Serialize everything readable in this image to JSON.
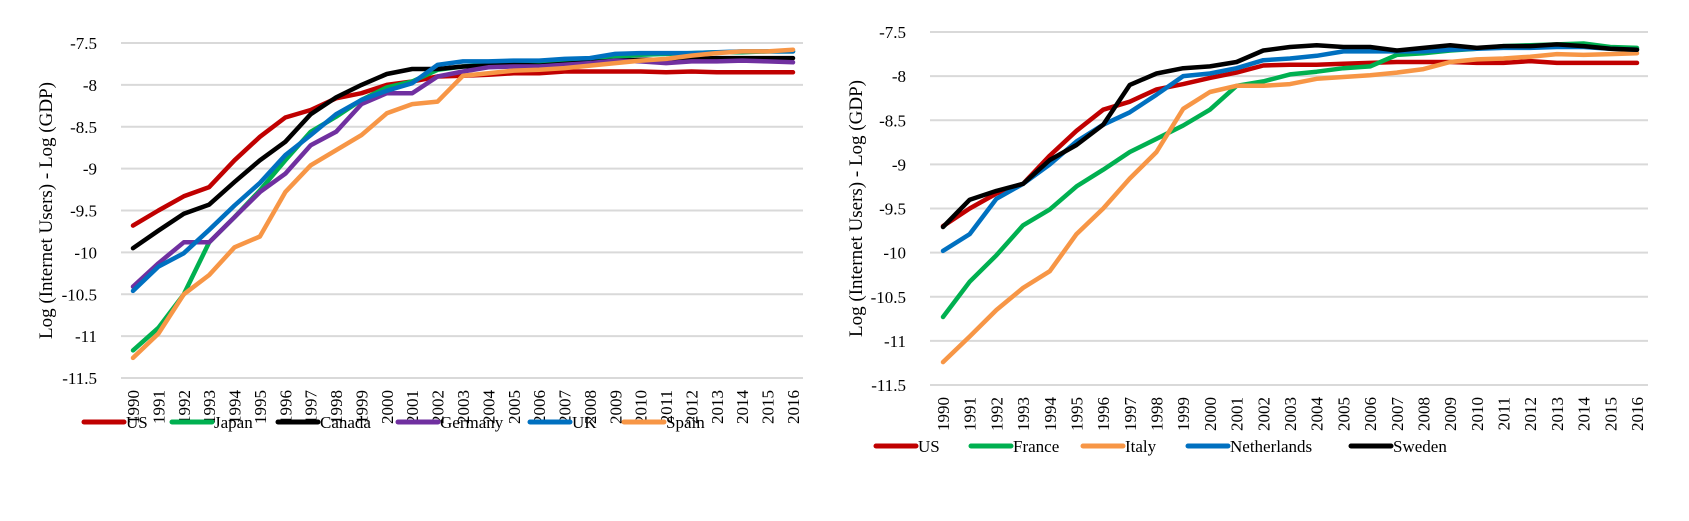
{
  "chart_data": [
    {
      "type": "line",
      "title": "",
      "xlabel": "",
      "ylabel": "Log (Internet Users) - Log (GDP)",
      "ylim": [
        -11.5,
        -7.5
      ],
      "yticks": [
        -7.5,
        -8,
        -8.5,
        -9,
        -9.5,
        -10,
        -10.5,
        -11,
        -11.5
      ],
      "ytick_labels": [
        "-7.5",
        "-8",
        "-8.5",
        "-9",
        "-9.5",
        "-10",
        "-10.5",
        "-11",
        "-11.5"
      ],
      "grid": true,
      "legend_position": "bottom",
      "x": [
        "1990",
        "1991",
        "1992",
        "1993",
        "1994",
        "1995",
        "1996",
        "1997",
        "1998",
        "1999",
        "2000",
        "2001",
        "2002",
        "2003",
        "2004",
        "2005",
        "2006",
        "2007",
        "2008",
        "2009",
        "2010",
        "2011",
        "2012",
        "2013",
        "2014",
        "2015",
        "2016"
      ],
      "series": [
        {
          "name": "US",
          "color": "#c00000",
          "values": [
            -9.68,
            -9.5,
            -9.33,
            -9.22,
            -8.9,
            -8.62,
            -8.39,
            -8.3,
            -8.16,
            -8.1,
            -8.0,
            -7.96,
            -7.9,
            -7.89,
            -7.88,
            -7.86,
            -7.86,
            -7.84,
            -7.84,
            -7.84,
            -7.84,
            -7.85,
            -7.84,
            -7.85,
            -7.85,
            -7.85,
            -7.85
          ]
        },
        {
          "name": "Japan",
          "color": "#00b050",
          "values": [
            -11.17,
            -10.9,
            -10.5,
            -9.88,
            -9.58,
            -9.26,
            -8.9,
            -8.56,
            -8.38,
            -8.18,
            -8.03,
            -7.96,
            -7.82,
            -7.78,
            -7.76,
            -7.74,
            -7.73,
            -7.71,
            -7.7,
            -7.67,
            -7.64,
            -7.63,
            -7.62,
            -7.61,
            -7.61,
            -7.6,
            -7.6
          ]
        },
        {
          "name": "Canada",
          "color": "#000000",
          "values": [
            -9.95,
            -9.74,
            -9.54,
            -9.43,
            -9.16,
            -8.9,
            -8.68,
            -8.35,
            -8.15,
            -8.0,
            -7.87,
            -7.81,
            -7.81,
            -7.78,
            -7.77,
            -7.76,
            -7.77,
            -7.75,
            -7.73,
            -7.71,
            -7.7,
            -7.7,
            -7.69,
            -7.68,
            -7.68,
            -7.68,
            -7.68
          ]
        },
        {
          "name": "Germany",
          "color": "#7030a0",
          "values": [
            -10.41,
            -10.13,
            -9.88,
            -9.88,
            -9.58,
            -9.28,
            -9.06,
            -8.72,
            -8.56,
            -8.23,
            -8.1,
            -8.1,
            -7.9,
            -7.84,
            -7.79,
            -7.78,
            -7.78,
            -7.76,
            -7.74,
            -7.71,
            -7.72,
            -7.74,
            -7.72,
            -7.72,
            -7.71,
            -7.72,
            -7.73
          ]
        },
        {
          "name": "UK",
          "color": "#0070c0",
          "values": [
            -10.46,
            -10.17,
            -10.01,
            -9.73,
            -9.44,
            -9.17,
            -8.84,
            -8.6,
            -8.35,
            -8.18,
            -8.07,
            -7.98,
            -7.76,
            -7.72,
            -7.72,
            -7.71,
            -7.71,
            -7.69,
            -7.68,
            -7.63,
            -7.62,
            -7.62,
            -7.62,
            -7.61,
            -7.6,
            -7.6,
            -7.6
          ]
        },
        {
          "name": "Spain",
          "color": "#f79646",
          "values": [
            -11.26,
            -10.97,
            -10.5,
            -10.27,
            -9.94,
            -9.81,
            -9.28,
            -8.96,
            -8.78,
            -8.6,
            -8.34,
            -8.23,
            -8.2,
            -7.89,
            -7.86,
            -7.83,
            -7.82,
            -7.8,
            -7.77,
            -7.74,
            -7.71,
            -7.69,
            -7.65,
            -7.62,
            -7.6,
            -7.6,
            -7.58
          ]
        }
      ]
    },
    {
      "type": "line",
      "title": "",
      "xlabel": "",
      "ylabel": "Log (Internet Users) - Log (GDP)",
      "ylim": [
        -11.5,
        -7.5
      ],
      "yticks": [
        -7.5,
        -8,
        -8.5,
        -9,
        -9.5,
        -10,
        -10.5,
        -11,
        -11.5
      ],
      "ytick_labels": [
        "-7.5",
        "-8",
        "-8.5",
        "-9",
        "-9.5",
        "-10",
        "-10.5",
        "-11",
        "-11.5"
      ],
      "grid": true,
      "legend_position": "bottom",
      "x": [
        "1990",
        "1991",
        "1992",
        "1993",
        "1994",
        "1995",
        "1996",
        "1997",
        "1998",
        "1999",
        "2000",
        "2001",
        "2002",
        "2003",
        "2004",
        "2005",
        "2006",
        "2007",
        "2008",
        "2009",
        "2010",
        "2011",
        "2012",
        "2013",
        "2014",
        "2015",
        "2016"
      ],
      "series": [
        {
          "name": "US",
          "color": "#c00000",
          "values": [
            -9.7,
            -9.5,
            -9.33,
            -9.22,
            -8.9,
            -8.62,
            -8.38,
            -8.29,
            -8.15,
            -8.09,
            -8.02,
            -7.96,
            -7.88,
            -7.87,
            -7.87,
            -7.86,
            -7.85,
            -7.84,
            -7.84,
            -7.84,
            -7.85,
            -7.85,
            -7.83,
            -7.85,
            -7.85,
            -7.85,
            -7.85
          ]
        },
        {
          "name": "France",
          "color": "#00b050",
          "values": [
            -10.73,
            -10.33,
            -10.03,
            -9.69,
            -9.51,
            -9.25,
            -9.06,
            -8.86,
            -8.71,
            -8.56,
            -8.38,
            -8.11,
            -8.06,
            -7.98,
            -7.95,
            -7.91,
            -7.89,
            -7.76,
            -7.74,
            -7.71,
            -7.69,
            -7.66,
            -7.65,
            -7.64,
            -7.63,
            -7.67,
            -7.68
          ]
        },
        {
          "name": "Italy",
          "color": "#f79646",
          "values": [
            -11.24,
            -10.95,
            -10.65,
            -10.4,
            -10.21,
            -9.79,
            -9.5,
            -9.16,
            -8.86,
            -8.37,
            -8.18,
            -8.11,
            -8.11,
            -8.09,
            -8.03,
            -8.01,
            -7.99,
            -7.96,
            -7.92,
            -7.84,
            -7.81,
            -7.8,
            -7.78,
            -7.75,
            -7.76,
            -7.75,
            -7.74
          ]
        },
        {
          "name": "Netherlands",
          "color": "#0070c0",
          "values": [
            -9.98,
            -9.79,
            -9.39,
            -9.22,
            -9.0,
            -8.74,
            -8.55,
            -8.41,
            -8.21,
            -8.0,
            -7.97,
            -7.91,
            -7.82,
            -7.8,
            -7.77,
            -7.72,
            -7.72,
            -7.72,
            -7.72,
            -7.7,
            -7.69,
            -7.68,
            -7.68,
            -7.67,
            -7.67,
            -7.69,
            -7.7
          ]
        },
        {
          "name": "Sweden",
          "color": "#000000",
          "values": [
            -9.71,
            -9.4,
            -9.3,
            -9.22,
            -8.95,
            -8.78,
            -8.55,
            -8.1,
            -7.97,
            -7.91,
            -7.89,
            -7.84,
            -7.71,
            -7.67,
            -7.65,
            -7.67,
            -7.67,
            -7.71,
            -7.68,
            -7.65,
            -7.68,
            -7.66,
            -7.66,
            -7.64,
            -7.66,
            -7.69,
            -7.7
          ]
        }
      ]
    }
  ]
}
